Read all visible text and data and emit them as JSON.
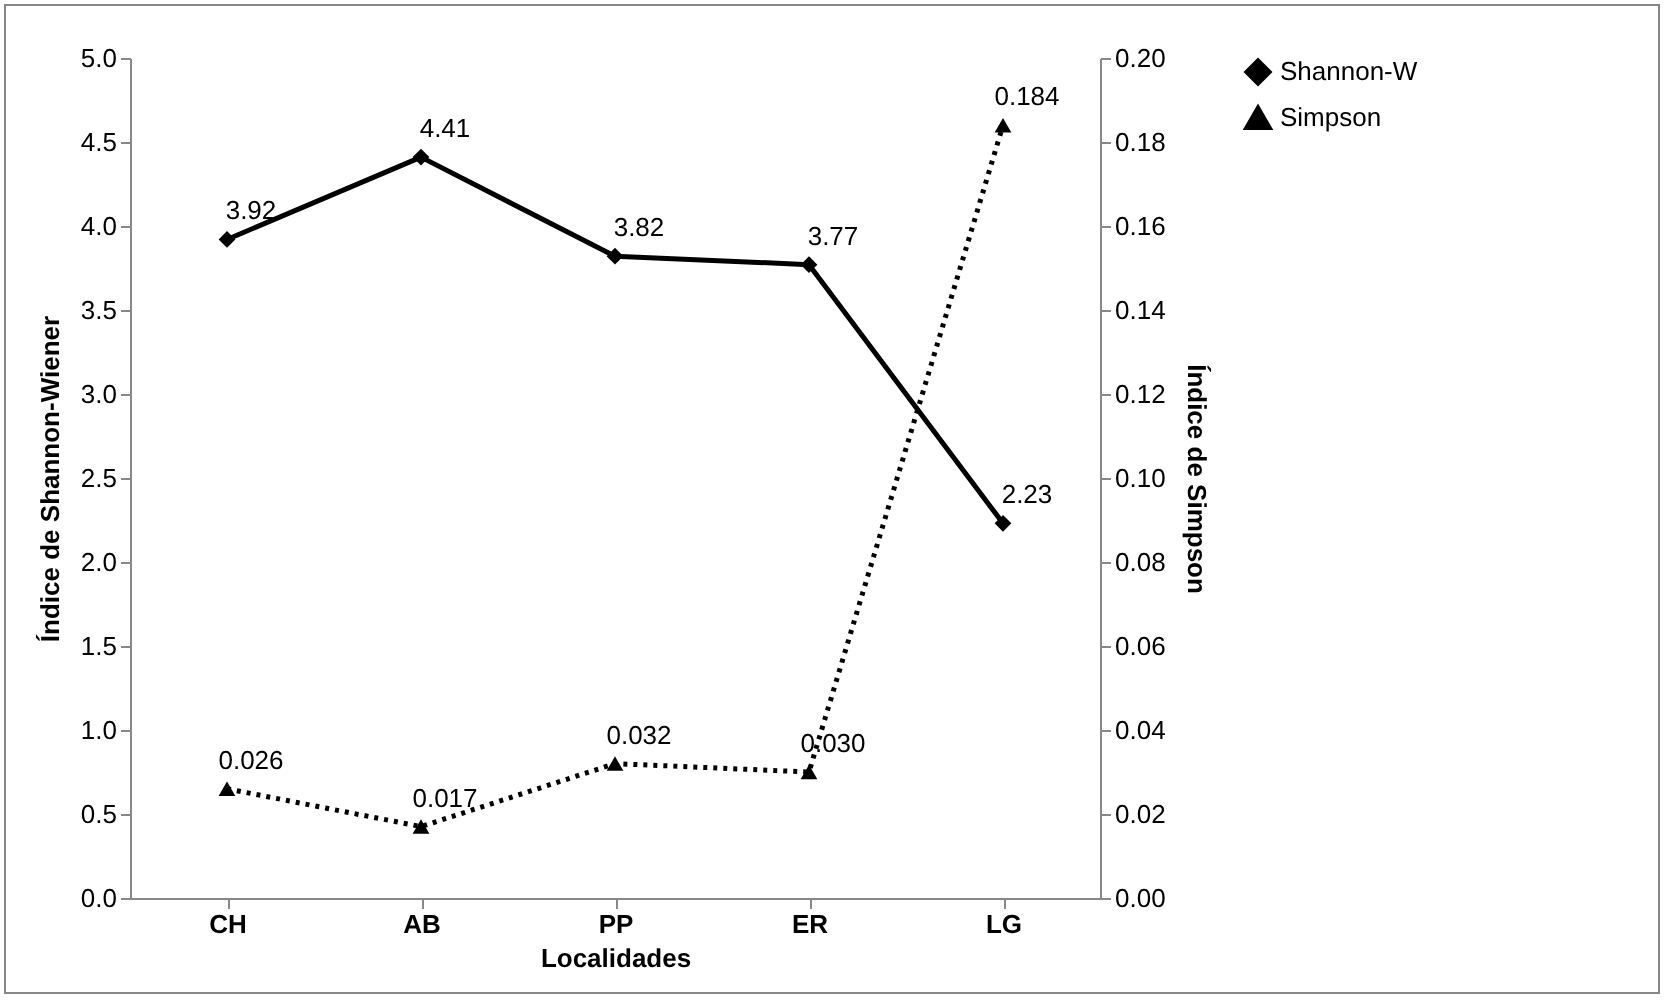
{
  "chart_data": {
    "type": "line",
    "xlabel": "Localidades",
    "ylabel": "Índice de Shannon-Wiener",
    "y2label": "Índice de Simpson",
    "categories": [
      "CH",
      "AB",
      "PP",
      "ER",
      "LG"
    ],
    "series": [
      {
        "name": "Shannon-W",
        "color": "#000000",
        "marker": "diamond",
        "line_style": "solid",
        "values": [
          3.92,
          4.41,
          3.82,
          3.77,
          2.23
        ],
        "value_labels": [
          "3.92",
          "4.41",
          "3.82",
          "3.77",
          "2.23"
        ]
      },
      {
        "name": "Simpson",
        "color": "#000000",
        "marker": "triangle",
        "line_style": "dotted",
        "axis": "y2",
        "values": [
          0.026,
          0.017,
          0.032,
          0.03,
          0.184
        ],
        "value_labels": [
          "0.026",
          "0.017",
          "0.032",
          "0.030",
          "0.184"
        ]
      }
    ],
    "ylim": [
      0,
      5
    ],
    "yticks": [
      {
        "value": 0,
        "label": "0.0"
      },
      {
        "value": 0.5,
        "label": "0.5"
      },
      {
        "value": 1,
        "label": "1.0"
      },
      {
        "value": 1.5,
        "label": "1.5"
      },
      {
        "value": 2,
        "label": "2.0"
      },
      {
        "value": 2.5,
        "label": "2.5"
      },
      {
        "value": 3,
        "label": "3.0"
      },
      {
        "value": 3.5,
        "label": "3.5"
      },
      {
        "value": 4,
        "label": "4.0"
      },
      {
        "value": 4.5,
        "label": "4.5"
      },
      {
        "value": 5,
        "label": "5.0"
      }
    ],
    "y2lim": [
      0,
      0.2
    ],
    "y2ticks": [
      {
        "value": 0,
        "label": "0.00"
      },
      {
        "value": 0.02,
        "label": "0.02"
      },
      {
        "value": 0.04,
        "label": "0.04"
      },
      {
        "value": 0.06,
        "label": "0.06"
      },
      {
        "value": 0.08,
        "label": "0.08"
      },
      {
        "value": 0.1,
        "label": "0.10"
      },
      {
        "value": 0.12,
        "label": "0.12"
      },
      {
        "value": 0.14,
        "label": "0.14"
      },
      {
        "value": 0.16,
        "label": "0.16"
      },
      {
        "value": 0.18,
        "label": "0.18"
      },
      {
        "value": 0.2,
        "label": "0.20"
      }
    ],
    "grid": false,
    "legend": "right"
  }
}
